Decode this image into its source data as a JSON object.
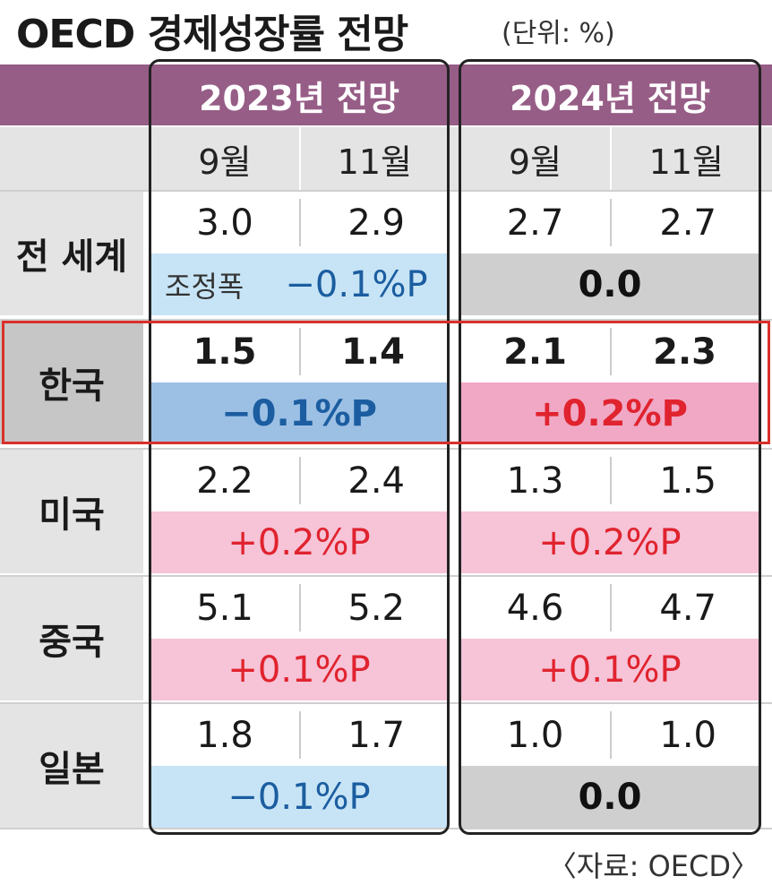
{
  "header": {
    "title": "OECD 경제성장률 전망",
    "unit": "(단위: %)"
  },
  "table": {
    "groups": [
      "2023년 전망",
      "2024년 전망"
    ],
    "months": [
      "9월",
      "11월",
      "9월",
      "11월"
    ],
    "rows": [
      {
        "label": "전 세계",
        "values": [
          "3.0",
          "2.9",
          "2.7",
          "2.7"
        ],
        "change_note": "조정폭",
        "changes": [
          "−0.1%P",
          "0.0"
        ]
      },
      {
        "label": "한국",
        "values": [
          "1.5",
          "1.4",
          "2.1",
          "2.3"
        ],
        "changes": [
          "−0.1%P",
          "+0.2%P"
        ]
      },
      {
        "label": "미국",
        "values": [
          "2.2",
          "2.4",
          "1.3",
          "1.5"
        ],
        "changes": [
          "+0.2%P",
          "+0.2%P"
        ]
      },
      {
        "label": "중국",
        "values": [
          "5.1",
          "5.2",
          "4.6",
          "4.7"
        ],
        "changes": [
          "+0.1%P",
          "+0.1%P"
        ]
      },
      {
        "label": "일본",
        "values": [
          "1.8",
          "1.7",
          "1.0",
          "1.0"
        ],
        "changes": [
          "−0.1%P",
          "0.0"
        ]
      }
    ]
  },
  "footer": {
    "source": "〈자료: OECD〉"
  }
}
